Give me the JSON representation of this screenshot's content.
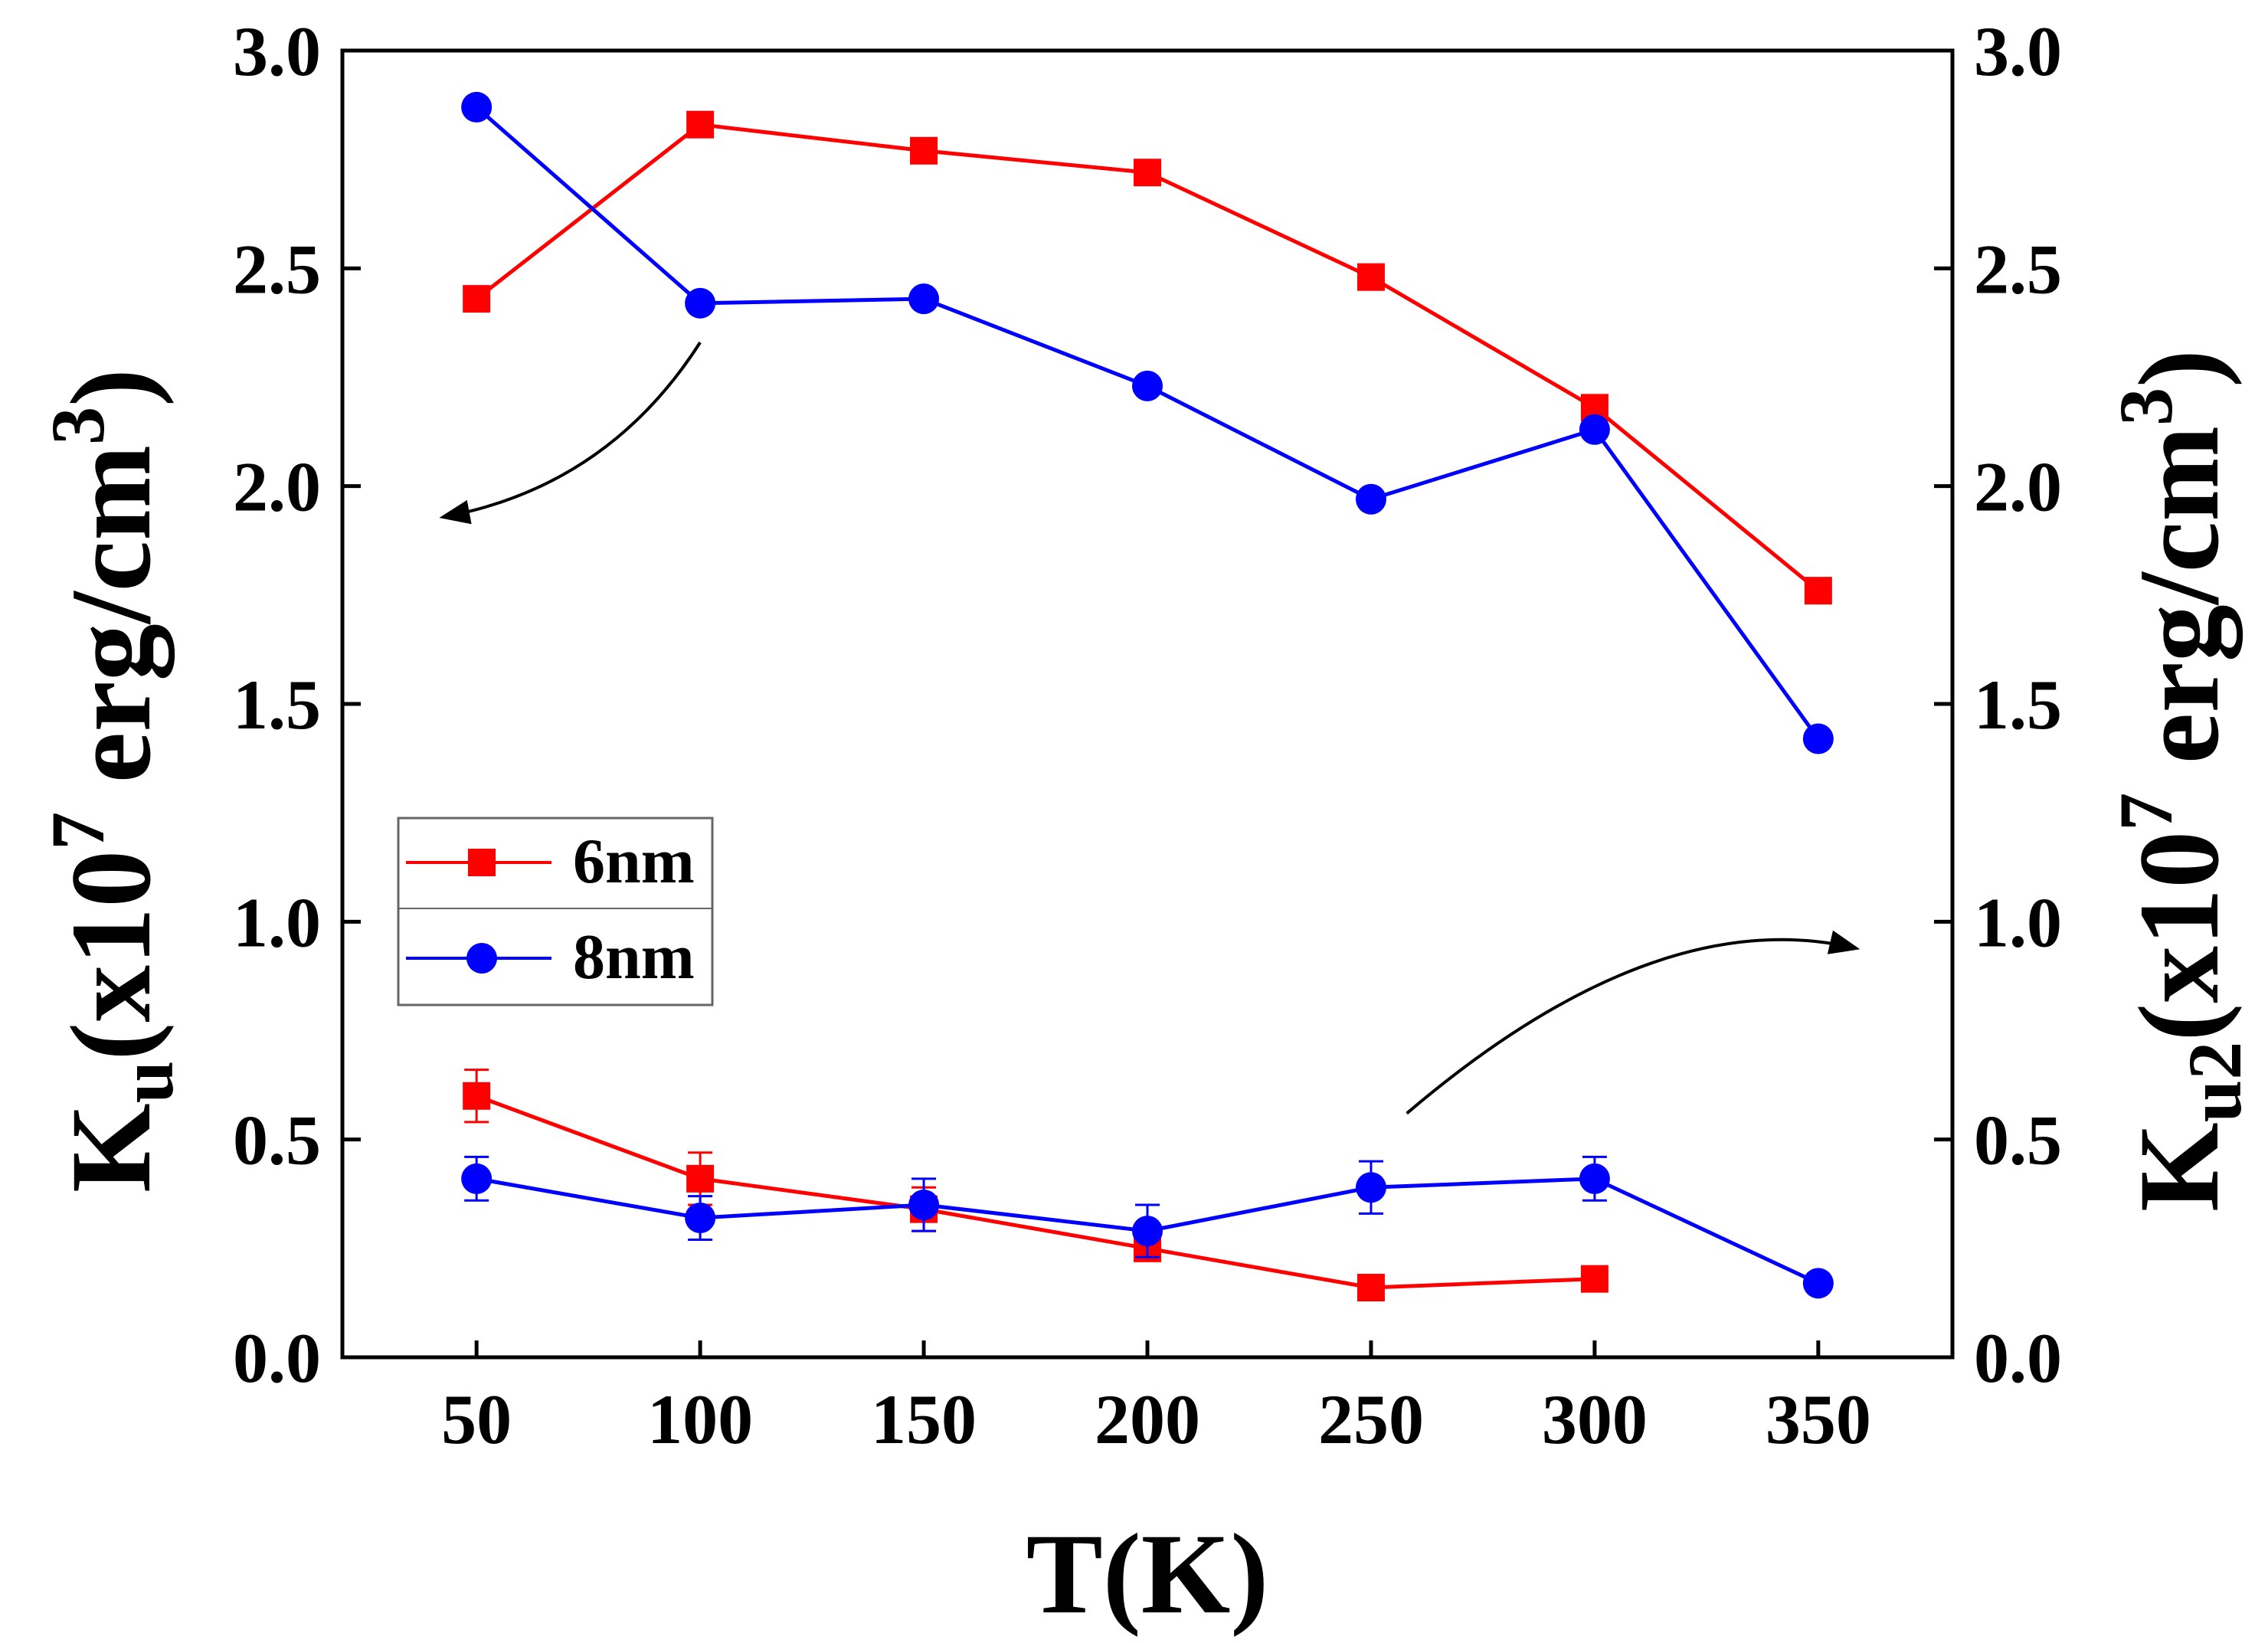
{
  "chart_data": {
    "type": "line",
    "x": [
      50,
      100,
      150,
      200,
      250,
      300,
      350
    ],
    "xlim": [
      20,
      380
    ],
    "ylim": [
      0,
      3.0
    ],
    "y2lim": [
      0,
      3.0
    ],
    "xticks": [
      "50",
      "100",
      "150",
      "200",
      "250",
      "300",
      "350"
    ],
    "yticks": [
      "0.0",
      "0.5",
      "1.0",
      "1.5",
      "2.0",
      "2.5",
      "3.0"
    ],
    "y2ticks": [
      "0.0",
      "0.5",
      "1.0",
      "1.5",
      "2.0",
      "2.5",
      "3.0"
    ],
    "xlabel": "T(K)",
    "ylabel": {
      "main": "K",
      "sub": "u",
      "paren": "(x10",
      "sup": "7",
      "unit": " erg/cm",
      "unit_sup": "3",
      "close": ")"
    },
    "y2label": {
      "main": "K",
      "sub": "u2",
      "paren": "(x10",
      "sup": "7",
      "unit": " erg/cm",
      "unit_sup": "3",
      "close": ")"
    },
    "legend": {
      "position": "center-left",
      "entries": [
        "6nm",
        "8nm"
      ]
    },
    "series": [
      {
        "name": "6nm",
        "axis": "left",
        "marker": "square",
        "color": "#ff0000",
        "values": [
          2.43,
          2.83,
          2.77,
          2.72,
          2.48,
          2.18,
          1.76
        ],
        "errors": null
      },
      {
        "name": "8nm",
        "axis": "left",
        "marker": "circle",
        "color": "#0000ff",
        "values": [
          2.87,
          2.42,
          2.43,
          2.23,
          1.97,
          2.13,
          1.42
        ],
        "errors": null
      },
      {
        "name": "6nm",
        "axis": "right",
        "marker": "square",
        "color": "#ff0000",
        "x": [
          50,
          100,
          150,
          200,
          250,
          300
        ],
        "values": [
          0.6,
          0.41,
          0.34,
          0.25,
          0.16,
          0.18
        ],
        "errors": [
          0.06,
          0.06,
          0.05,
          0,
          0,
          0
        ]
      },
      {
        "name": "8nm",
        "axis": "right",
        "marker": "circle",
        "color": "#0000ff",
        "values": [
          0.41,
          0.32,
          0.35,
          0.29,
          0.39,
          0.41,
          0.17
        ],
        "errors": [
          0.05,
          0.05,
          0.06,
          0.06,
          0.06,
          0.05,
          0
        ]
      }
    ],
    "annotations": [
      {
        "type": "arrow",
        "points_to": "left-axis",
        "from_x": 100,
        "from_y": 2.33,
        "to_x": 43,
        "to_y": 1.93
      },
      {
        "type": "arrow",
        "points_to": "right-axis",
        "from_x": 258,
        "from_y": 0.56,
        "to_x": 358,
        "to_y": 0.94
      }
    ]
  }
}
